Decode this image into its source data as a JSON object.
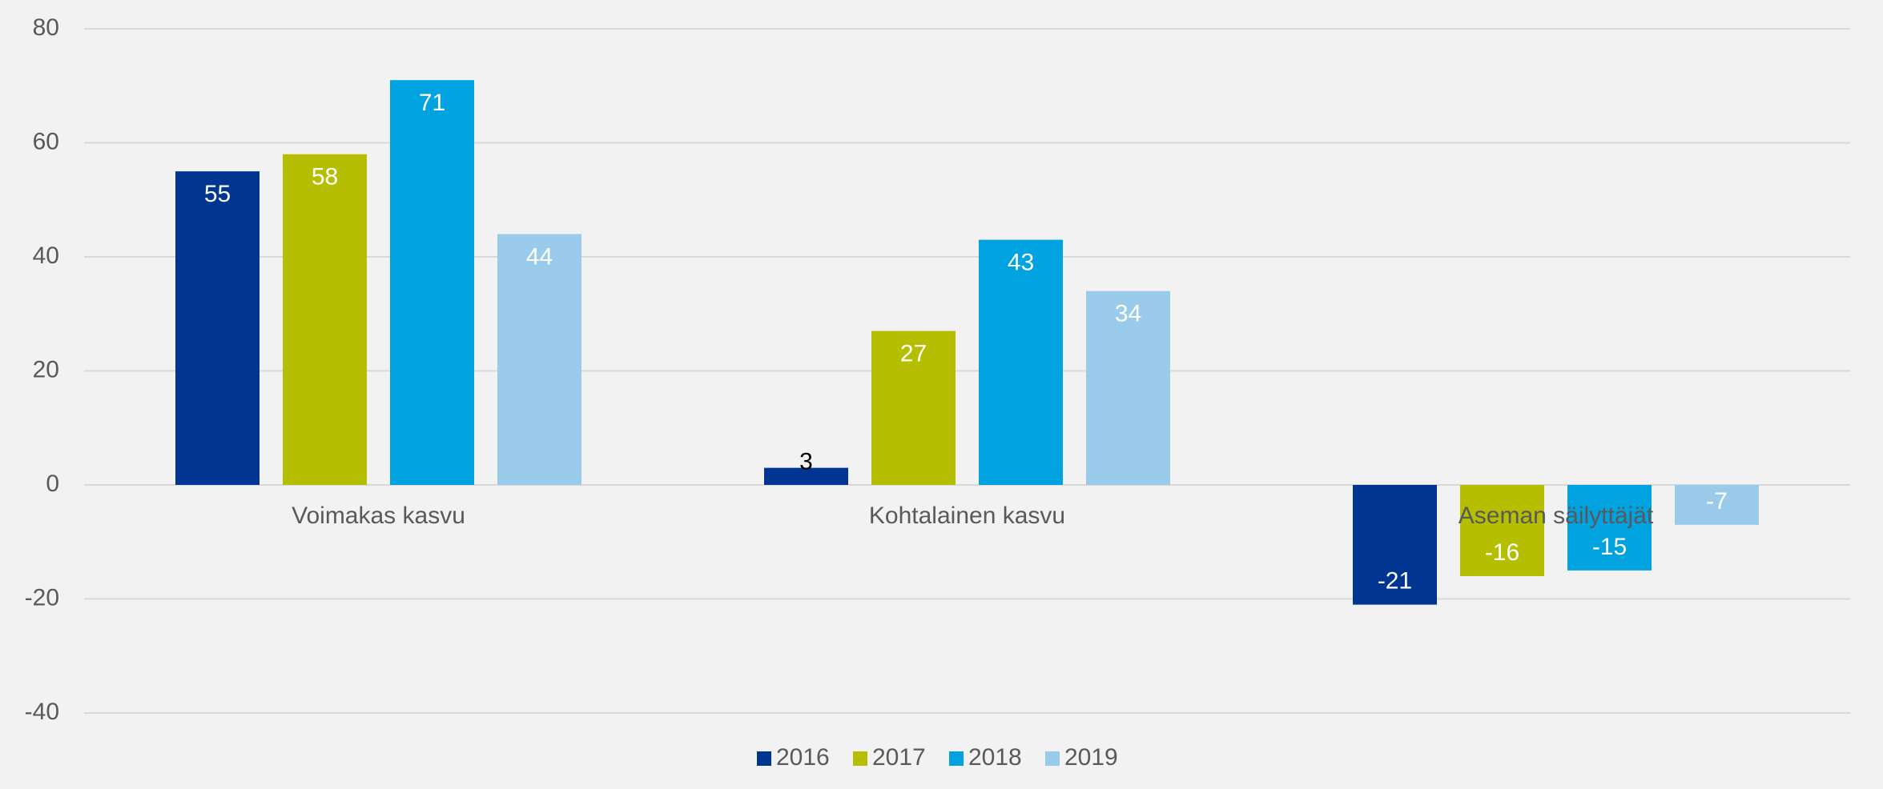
{
  "chart_data": {
    "type": "bar",
    "categories": [
      "Voimakas kasvu",
      "Kohtalainen kasvu",
      "Aseman säilyttäjät"
    ],
    "series": [
      {
        "name": "2016",
        "color": "#003591",
        "values": [
          55,
          3,
          -21
        ]
      },
      {
        "name": "2017",
        "color": "#b5be00",
        "values": [
          58,
          27,
          -16
        ]
      },
      {
        "name": "2018",
        "color": "#00a2e0",
        "values": [
          71,
          43,
          -15
        ]
      },
      {
        "name": "2019",
        "color": "#9bcbeb",
        "values": [
          44,
          34,
          -7
        ]
      }
    ],
    "ylim": [
      -40,
      80
    ],
    "yticks": [
      -40,
      -20,
      0,
      20,
      40,
      60,
      80
    ],
    "grid": true,
    "legend": "bottom"
  }
}
